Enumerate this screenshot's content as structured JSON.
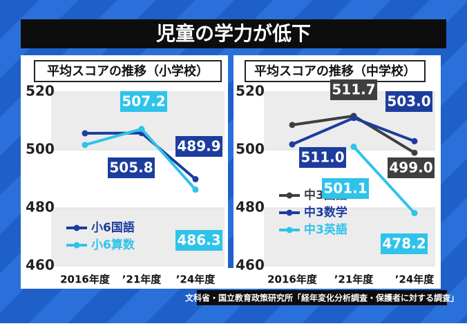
{
  "title": "児童の学力が低下",
  "source": "文科省・国立教育政策研究所「経年変化分析調査・保護者に対する調査」",
  "chart_data": [
    {
      "type": "line",
      "title": "平均スコアの推移（小学校）",
      "categories": [
        "2016年度",
        "’21年度",
        "’24年度"
      ],
      "ylim": [
        460,
        520
      ],
      "yticks": [
        460,
        480,
        500,
        520
      ],
      "legend": "bottom-left",
      "series": [
        {
          "name": "小6国語",
          "color": "#1c3d9e",
          "values": [
            505.7,
            505.8,
            489.9
          ],
          "value_labels": [
            null,
            "505.8",
            "489.9"
          ]
        },
        {
          "name": "小6算数",
          "color": "#2ec3ea",
          "values": [
            501.7,
            507.2,
            486.3
          ],
          "value_labels": [
            null,
            "507.2",
            "486.3"
          ]
        }
      ]
    },
    {
      "type": "line",
      "title": "平均スコアの推移（中学校）",
      "categories": [
        "2016年度",
        "’21年度",
        "’24年度"
      ],
      "ylim": [
        460,
        520
      ],
      "yticks": [
        460,
        480,
        500,
        520
      ],
      "legend": "bottom-left",
      "series": [
        {
          "name": "中3国語",
          "color": "#3f3f3f",
          "values": [
            508.6,
            511.7,
            499.0
          ],
          "value_labels": [
            null,
            "511.7",
            "499.0"
          ]
        },
        {
          "name": "中3数学",
          "color": "#1c3d9e",
          "values": [
            501.9,
            511.0,
            503.0
          ],
          "value_labels": [
            null,
            "511.0",
            "503.0"
          ]
        },
        {
          "name": "中3英語",
          "color": "#2ec3ea",
          "values": [
            null,
            501.1,
            478.2
          ],
          "value_labels": [
            null,
            "501.1",
            "478.2"
          ]
        }
      ]
    }
  ]
}
